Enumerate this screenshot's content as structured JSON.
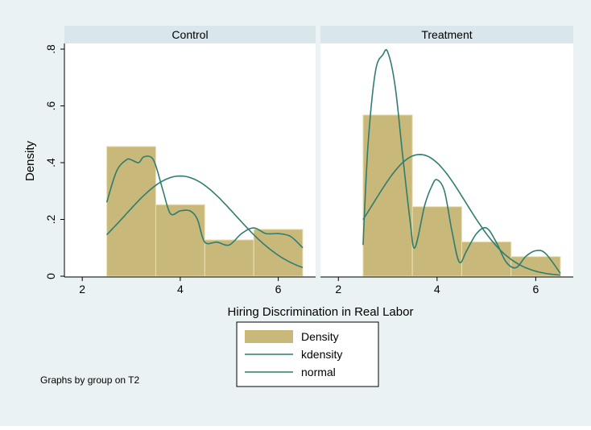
{
  "chart_data": {
    "type": "histogram",
    "xlabel": "Hiring Discrimination in Real Labor",
    "ylabel": "Density",
    "xlim": [
      1.8,
      6.5
    ],
    "ylim": [
      0,
      0.8
    ],
    "xticks": [
      "2",
      "4",
      "6"
    ],
    "yticks": [
      "0",
      ".2",
      ".4",
      ".6",
      ".8"
    ],
    "legend": [
      "Density",
      "kdensity",
      "normal"
    ],
    "legend_position": "bottom-center",
    "note": "Graphs by group on T2",
    "colors": {
      "background": "#eaf2f3",
      "panel": "#ffffff",
      "strip": "#d9e6eb",
      "bar": "#c8b87a",
      "bar_edge": "#ebe0b3",
      "line": "#2f7d6f"
    },
    "panels": [
      {
        "title": "Control",
        "bins": [
          {
            "x0": 2.5,
            "x1": 3.5,
            "density": 0.457
          },
          {
            "x0": 3.5,
            "x1": 4.5,
            "density": 0.252
          },
          {
            "x0": 4.5,
            "x1": 5.5,
            "density": 0.128
          },
          {
            "x0": 5.5,
            "x1": 6.5,
            "density": 0.165
          }
        ],
        "kdensity": {
          "x": [
            2.5,
            2.7,
            2.9,
            3.0,
            3.15,
            3.25,
            3.4,
            3.5,
            3.65,
            3.8,
            4.0,
            4.2,
            4.35,
            4.5,
            4.75,
            5.0,
            5.25,
            5.5,
            5.75,
            6.0,
            6.25,
            6.5
          ],
          "y": [
            0.26,
            0.37,
            0.41,
            0.41,
            0.4,
            0.42,
            0.42,
            0.39,
            0.3,
            0.22,
            0.23,
            0.23,
            0.2,
            0.12,
            0.12,
            0.11,
            0.15,
            0.17,
            0.15,
            0.15,
            0.14,
            0.1
          ]
        },
        "normal": {
          "mean": 4.0,
          "sd": 1.13
        }
      },
      {
        "title": "Treatment",
        "bins": [
          {
            "x0": 2.5,
            "x1": 3.5,
            "density": 0.568
          },
          {
            "x0": 3.5,
            "x1": 4.5,
            "density": 0.245
          },
          {
            "x0": 4.5,
            "x1": 5.5,
            "density": 0.121
          },
          {
            "x0": 5.5,
            "x1": 6.5,
            "density": 0.069
          }
        ],
        "kdensity": {
          "x": [
            2.5,
            2.6,
            2.75,
            2.9,
            3.0,
            3.15,
            3.3,
            3.45,
            3.55,
            3.75,
            3.9,
            4.0,
            4.15,
            4.3,
            4.45,
            4.6,
            4.8,
            5.0,
            5.2,
            5.4,
            5.6,
            5.8,
            6.0,
            6.2,
            6.5
          ],
          "y": [
            0.11,
            0.46,
            0.72,
            0.78,
            0.79,
            0.67,
            0.43,
            0.2,
            0.1,
            0.25,
            0.32,
            0.34,
            0.3,
            0.16,
            0.05,
            0.09,
            0.15,
            0.17,
            0.12,
            0.05,
            0.03,
            0.07,
            0.09,
            0.08,
            0.01
          ]
        },
        "normal": {
          "mean": 3.65,
          "sd": 0.93
        }
      }
    ]
  }
}
